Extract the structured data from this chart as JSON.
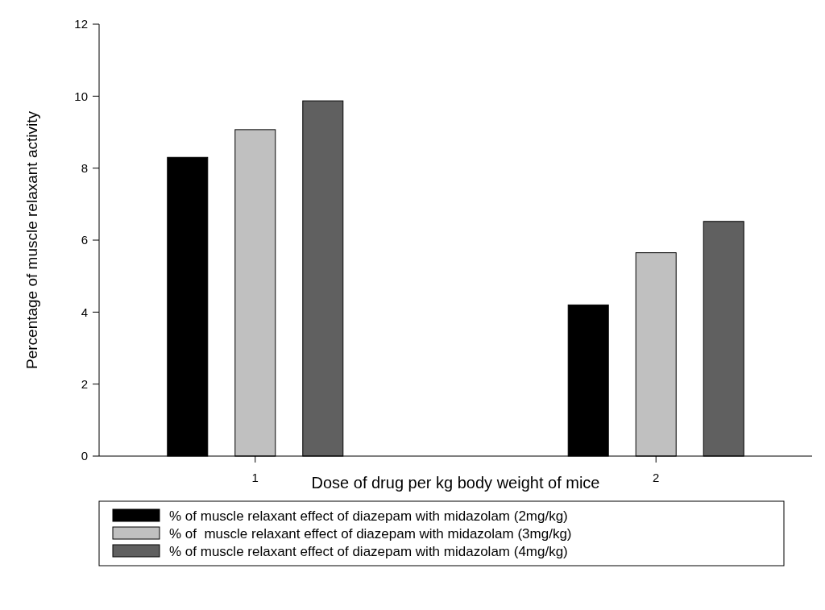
{
  "chart_data": {
    "type": "bar",
    "xlabel": "Dose of drug per kg body weight of mice",
    "ylabel": "Percentage of muscle relaxant activity",
    "categories": [
      "1",
      "2"
    ],
    "series": [
      {
        "name": "% of muscle relaxant effect of diazepam with midazolam (2mg/kg)",
        "color": "#000000",
        "values": [
          8.3,
          4.2
        ]
      },
      {
        "name": "% of  muscle relaxant effect of diazepam with midazolam (3mg/kg)",
        "color": "#c0c0c0",
        "values": [
          9.07,
          5.65
        ]
      },
      {
        "name": "% of muscle relaxant effect of diazepam with midazolam (4mg/kg)",
        "color": "#606060",
        "values": [
          9.87,
          6.52
        ]
      }
    ],
    "ylim": [
      0,
      12
    ],
    "yticks": [
      0,
      2,
      4,
      6,
      8,
      10,
      12
    ],
    "legend": "bottom",
    "grid": false
  }
}
